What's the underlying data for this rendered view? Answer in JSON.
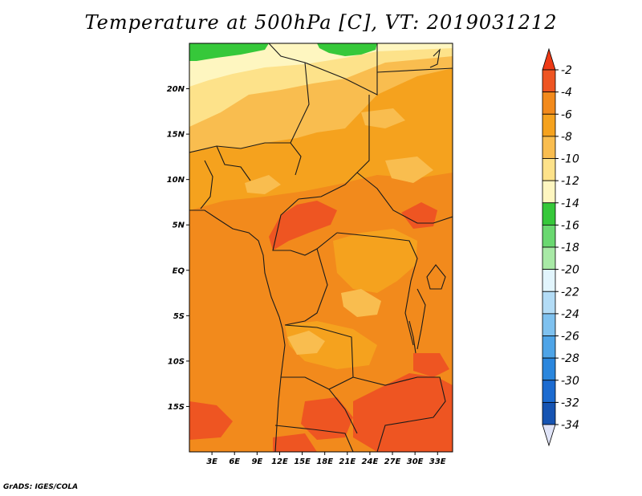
{
  "title": "Temperature at 500hPa [C], VT: 2019031212",
  "credit": "GrADS: IGES/COLA",
  "colors": {
    "c_m2": "#ee5522",
    "c_m4": "#f28a1c",
    "c_m6": "#f5a21e",
    "c_m8": "#f9bd4f",
    "c_m10": "#fde28a",
    "c_m12": "#fef6c0",
    "c_m14": "#36c83a",
    "c_m16": "#6ad870",
    "c_m18": "#a8e9a6",
    "c_m20": "#e2f5fd",
    "c_m22": "#b3dcf6",
    "c_m24": "#7ec1ef",
    "c_m26": "#4ea4e7",
    "c_m28": "#2a86dd",
    "c_m30": "#1c6bd0",
    "c_m32": "#1654b2",
    "c_m34": "#0c1b7a",
    "under": "#e0e4f8",
    "over": "#ee3a16"
  },
  "map": {
    "lon_range": [
      0,
      35
    ],
    "lat_range": [
      -20,
      25
    ],
    "x_ticks": [
      {
        "lon": 3,
        "label": "3E"
      },
      {
        "lon": 6,
        "label": "6E"
      },
      {
        "lon": 9,
        "label": "9E"
      },
      {
        "lon": 12,
        "label": "12E"
      },
      {
        "lon": 15,
        "label": "15E"
      },
      {
        "lon": 18,
        "label": "18E"
      },
      {
        "lon": 21,
        "label": "21E"
      },
      {
        "lon": 24,
        "label": "24E"
      },
      {
        "lon": 27,
        "label": "27E"
      },
      {
        "lon": 30,
        "label": "30E"
      },
      {
        "lon": 33,
        "label": "33E"
      }
    ],
    "y_ticks": [
      {
        "lat": 20,
        "label": "20N"
      },
      {
        "lat": 15,
        "label": "15N"
      },
      {
        "lat": 10,
        "label": "10N"
      },
      {
        "lat": 5,
        "label": "5N"
      },
      {
        "lat": 0,
        "label": "EQ"
      },
      {
        "lat": -5,
        "label": "5S"
      },
      {
        "lat": -10,
        "label": "10S"
      },
      {
        "lat": -15,
        "label": "15S"
      }
    ]
  },
  "colorbar": {
    "labels": [
      "-2",
      "-4",
      "-6",
      "-8",
      "-10",
      "-12",
      "-14",
      "-16",
      "-18",
      "-20",
      "-22",
      "-24",
      "-26",
      "-28",
      "-30",
      "-32",
      "-34"
    ],
    "values": [
      -2,
      -4,
      -6,
      -8,
      -10,
      -12,
      -14,
      -16,
      -18,
      -20,
      -22,
      -24,
      -26,
      -28,
      -30,
      -32,
      -34
    ]
  }
}
